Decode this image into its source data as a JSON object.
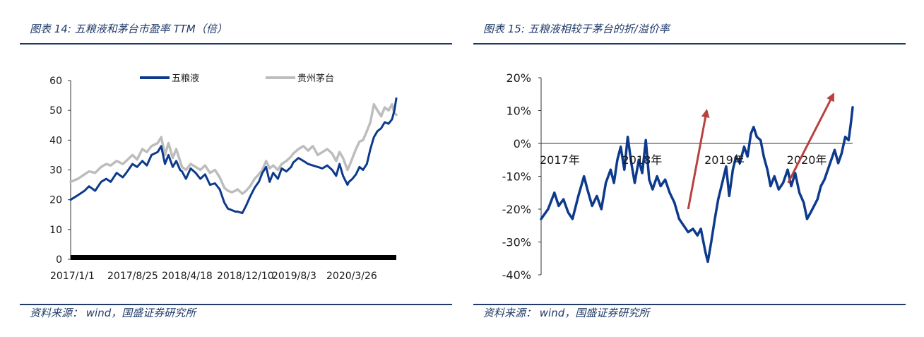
{
  "left": {
    "title": "图表 14:  五粮液和茅台市盈率 TTM（倍）",
    "source": "资料来源：  wind，国盛证券研究所",
    "chart_data": {
      "type": "line",
      "title": "",
      "xlabel": "",
      "ylabel": "",
      "ylim": [
        0,
        60
      ],
      "yticks": [
        0,
        10,
        20,
        30,
        40,
        50,
        60
      ],
      "x_tick_labels": [
        "2017/1/1",
        "2017/8/25",
        "2018/4/18",
        "2018/12/10",
        "2019/8/3",
        "2020/3/26"
      ],
      "x_start": "2017/1/1",
      "x_end": "2020/10/13",
      "legend_position": "top",
      "series": [
        {
          "name": "五粮液",
          "color": "#0d3a8c",
          "points": [
            [
              "2017/1/1",
              20
            ],
            [
              "2017/2/1",
              21.5
            ],
            [
              "2017/3/1",
              23
            ],
            [
              "2017/3/20",
              24.5
            ],
            [
              "2017/4/15",
              23
            ],
            [
              "2017/5/10",
              26
            ],
            [
              "2017/6/1",
              27
            ],
            [
              "2017/6/20",
              26
            ],
            [
              "2017/7/15",
              29
            ],
            [
              "2017/8/10",
              27.5
            ],
            [
              "2017/8/25",
              29
            ],
            [
              "2017/9/20",
              32
            ],
            [
              "2017/10/10",
              31
            ],
            [
              "2017/11/1",
              33
            ],
            [
              "2017/11/20",
              31.5
            ],
            [
              "2017/12/10",
              35
            ],
            [
              "2018/1/5",
              36
            ],
            [
              "2018/1/20",
              38
            ],
            [
              "2018/2/5",
              32
            ],
            [
              "2018/2/20",
              35
            ],
            [
              "2018/3/10",
              31
            ],
            [
              "2018/3/25",
              33
            ],
            [
              "2018/4/10",
              30
            ],
            [
              "2018/4/18",
              29.5
            ],
            [
              "2018/5/5",
              27
            ],
            [
              "2018/5/25",
              30.5
            ],
            [
              "2018/6/15",
              29
            ],
            [
              "2018/7/5",
              27
            ],
            [
              "2018/7/25",
              28.5
            ],
            [
              "2018/8/15",
              25
            ],
            [
              "2018/9/5",
              25.5
            ],
            [
              "2018/9/25",
              23.5
            ],
            [
              "2018/10/15",
              19
            ],
            [
              "2018/10/30",
              17
            ],
            [
              "2018/11/15",
              16.5
            ],
            [
              "2018/12/1",
              16
            ],
            [
              "2018/12/10",
              16
            ],
            [
              "2018/12/30",
              15.5
            ],
            [
              "2019/1/15",
              18
            ],
            [
              "2019/2/1",
              21
            ],
            [
              "2019/2/20",
              24
            ],
            [
              "2019/3/10",
              26
            ],
            [
              "2019/3/25",
              29
            ],
            [
              "2019/4/10",
              31
            ],
            [
              "2019/4/25",
              26
            ],
            [
              "2019/5/10",
              29
            ],
            [
              "2019/5/30",
              27
            ],
            [
              "2019/6/15",
              30.5
            ],
            [
              "2019/7/5",
              29.5
            ],
            [
              "2019/7/25",
              31
            ],
            [
              "2019/8/3",
              32.5
            ],
            [
              "2019/8/25",
              34
            ],
            [
              "2019/9/15",
              33
            ],
            [
              "2019/10/5",
              32
            ],
            [
              "2019/10/25",
              31.5
            ],
            [
              "2019/11/15",
              31
            ],
            [
              "2019/12/5",
              30.5
            ],
            [
              "2019/12/25",
              31.5
            ],
            [
              "2020/1/15",
              30
            ],
            [
              "2020/2/1",
              28
            ],
            [
              "2020/2/15",
              32
            ],
            [
              "2020/3/1",
              28
            ],
            [
              "2020/3/20",
              25
            ],
            [
              "2020/3/26",
              26
            ],
            [
              "2020/4/10",
              27
            ],
            [
              "2020/4/25",
              28.5
            ],
            [
              "2020/5/10",
              31
            ],
            [
              "2020/5/25",
              30
            ],
            [
              "2020/6/10",
              32
            ],
            [
              "2020/6/25",
              37
            ],
            [
              "2020/7/10",
              41
            ],
            [
              "2020/7/25",
              43
            ],
            [
              "2020/8/10",
              44
            ],
            [
              "2020/8/25",
              46
            ],
            [
              "2020/9/10",
              45.5
            ],
            [
              "2020/9/25",
              47
            ],
            [
              "2020/10/5",
              50
            ],
            [
              "2020/10/13",
              54
            ]
          ]
        },
        {
          "name": "贵州茅台",
          "color": "#bdbdbd",
          "points": [
            [
              "2017/1/1",
              26
            ],
            [
              "2017/2/1",
              27
            ],
            [
              "2017/3/1",
              28.5
            ],
            [
              "2017/3/20",
              29.5
            ],
            [
              "2017/4/15",
              29
            ],
            [
              "2017/5/10",
              31
            ],
            [
              "2017/6/1",
              32
            ],
            [
              "2017/6/20",
              31.5
            ],
            [
              "2017/7/15",
              33
            ],
            [
              "2017/8/10",
              32
            ],
            [
              "2017/8/25",
              33
            ],
            [
              "2017/9/20",
              35
            ],
            [
              "2017/10/10",
              33.5
            ],
            [
              "2017/11/1",
              37
            ],
            [
              "2017/11/20",
              36
            ],
            [
              "2017/12/10",
              38
            ],
            [
              "2018/1/5",
              39
            ],
            [
              "2018/1/20",
              41
            ],
            [
              "2018/2/5",
              35
            ],
            [
              "2018/2/20",
              39
            ],
            [
              "2018/3/10",
              34
            ],
            [
              "2018/3/25",
              37
            ],
            [
              "2018/4/10",
              33
            ],
            [
              "2018/4/18",
              31
            ],
            [
              "2018/5/5",
              30
            ],
            [
              "2018/5/25",
              32
            ],
            [
              "2018/6/15",
              31
            ],
            [
              "2018/7/5",
              30
            ],
            [
              "2018/7/25",
              31.5
            ],
            [
              "2018/8/15",
              29
            ],
            [
              "2018/9/5",
              30
            ],
            [
              "2018/9/25",
              27.5
            ],
            [
              "2018/10/15",
              24
            ],
            [
              "2018/10/30",
              23
            ],
            [
              "2018/11/15",
              22.5
            ],
            [
              "2018/12/1",
              23
            ],
            [
              "2018/12/10",
              23.5
            ],
            [
              "2018/12/30",
              22
            ],
            [
              "2019/1/15",
              23
            ],
            [
              "2019/2/1",
              24.5
            ],
            [
              "2019/2/20",
              27
            ],
            [
              "2019/3/10",
              28.5
            ],
            [
              "2019/3/25",
              30
            ],
            [
              "2019/4/10",
              33
            ],
            [
              "2019/4/25",
              30.5
            ],
            [
              "2019/5/10",
              31.5
            ],
            [
              "2019/5/30",
              30
            ],
            [
              "2019/6/15",
              32
            ],
            [
              "2019/7/5",
              33
            ],
            [
              "2019/7/25",
              34.5
            ],
            [
              "2019/8/3",
              35.5
            ],
            [
              "2019/8/25",
              37
            ],
            [
              "2019/9/15",
              38
            ],
            [
              "2019/10/5",
              36.5
            ],
            [
              "2019/10/25",
              38
            ],
            [
              "2019/11/15",
              35
            ],
            [
              "2019/12/5",
              36
            ],
            [
              "2019/12/25",
              37
            ],
            [
              "2020/1/15",
              35.5
            ],
            [
              "2020/2/1",
              33
            ],
            [
              "2020/2/15",
              36
            ],
            [
              "2020/3/1",
              34
            ],
            [
              "2020/3/20",
              30
            ],
            [
              "2020/3/26",
              31
            ],
            [
              "2020/4/10",
              34
            ],
            [
              "2020/4/25",
              37
            ],
            [
              "2020/5/10",
              39.5
            ],
            [
              "2020/5/25",
              40
            ],
            [
              "2020/6/10",
              43
            ],
            [
              "2020/6/25",
              46
            ],
            [
              "2020/7/10",
              52
            ],
            [
              "2020/7/25",
              50
            ],
            [
              "2020/8/10",
              48
            ],
            [
              "2020/8/25",
              51
            ],
            [
              "2020/9/10",
              50
            ],
            [
              "2020/9/25",
              52
            ],
            [
              "2020/10/5",
              49
            ],
            [
              "2020/10/13",
              48.5
            ]
          ]
        }
      ]
    }
  },
  "right": {
    "title": "图表 15:  五粮液相较于茅台的折/溢价率",
    "source": "资料来源：  wind，国盛证券研究所",
    "chart_data": {
      "type": "line",
      "title": "",
      "xlabel": "",
      "ylabel": "",
      "ylim": [
        -0.4,
        0.2
      ],
      "ytick_labels": [
        "20%",
        "10%",
        "0%",
        "-10%",
        "-20%",
        "-30%",
        "-40%"
      ],
      "yticks": [
        0.2,
        0.1,
        0,
        -0.1,
        -0.2,
        -0.3,
        -0.4
      ],
      "x_tick_labels": [
        "2017年",
        "2018年",
        "2019年",
        "2020年"
      ],
      "x_ticks": [
        "2017/1/1",
        "2018/1/1",
        "2019/1/1",
        "2020/1/1"
      ],
      "x_start": "2017/1/1",
      "x_end": "2020/10/13",
      "legend_position": "none",
      "grid": false,
      "series": [
        {
          "color": "#0d3a8c",
          "points": [
            [
              "2017/1/1",
              -0.23
            ],
            [
              "2017/2/1",
              -0.2
            ],
            [
              "2017/3/1",
              -0.15
            ],
            [
              "2017/3/20",
              -0.19
            ],
            [
              "2017/4/10",
              -0.17
            ],
            [
              "2017/5/1",
              -0.21
            ],
            [
              "2017/5/20",
              -0.23
            ],
            [
              "2017/6/15",
              -0.16
            ],
            [
              "2017/7/10",
              -0.1
            ],
            [
              "2017/7/25",
              -0.14
            ],
            [
              "2017/8/15",
              -0.19
            ],
            [
              "2017/9/5",
              -0.16
            ],
            [
              "2017/9/25",
              -0.2
            ],
            [
              "2017/10/15",
              -0.12
            ],
            [
              "2017/11/5",
              -0.08
            ],
            [
              "2017/11/20",
              -0.12
            ],
            [
              "2017/12/5",
              -0.05
            ],
            [
              "2017/12/20",
              -0.01
            ],
            [
              "2018/1/5",
              -0.08
            ],
            [
              "2018/1/20",
              0.02
            ],
            [
              "2018/2/5",
              -0.06
            ],
            [
              "2018/2/20",
              -0.12
            ],
            [
              "2018/3/10",
              -0.05
            ],
            [
              "2018/3/25",
              -0.09
            ],
            [
              "2018/4/10",
              0.01
            ],
            [
              "2018/4/25",
              -0.11
            ],
            [
              "2018/5/10",
              -0.14
            ],
            [
              "2018/5/30",
              -0.1
            ],
            [
              "2018/6/15",
              -0.13
            ],
            [
              "2018/7/5",
              -0.11
            ],
            [
              "2018/7/25",
              -0.15
            ],
            [
              "2018/8/15",
              -0.18
            ],
            [
              "2018/9/5",
              -0.23
            ],
            [
              "2018/9/25",
              -0.25
            ],
            [
              "2018/10/15",
              -0.27
            ],
            [
              "2018/11/5",
              -0.26
            ],
            [
              "2018/11/25",
              -0.28
            ],
            [
              "2018/12/10",
              -0.26
            ],
            [
              "2018/12/30",
              -0.33
            ],
            [
              "2019/1/10",
              -0.36
            ],
            [
              "2019/1/25",
              -0.3
            ],
            [
              "2019/2/10",
              -0.23
            ],
            [
              "2019/2/25",
              -0.17
            ],
            [
              "2019/3/15",
              -0.12
            ],
            [
              "2019/4/1",
              -0.07
            ],
            [
              "2019/4/15",
              -0.16
            ],
            [
              "2019/5/1",
              -0.08
            ],
            [
              "2019/5/15",
              -0.04
            ],
            [
              "2019/6/1",
              -0.06
            ],
            [
              "2019/6/20",
              -0.01
            ],
            [
              "2019/7/5",
              -0.04
            ],
            [
              "2019/7/20",
              0.03
            ],
            [
              "2019/8/1",
              0.05
            ],
            [
              "2019/8/15",
              0.02
            ],
            [
              "2019/9/1",
              0.01
            ],
            [
              "2019/9/15",
              -0.04
            ],
            [
              "2019/10/1",
              -0.08
            ],
            [
              "2019/10/15",
              -0.13
            ],
            [
              "2019/11/1",
              -0.1
            ],
            [
              "2019/11/20",
              -0.14
            ],
            [
              "2019/12/10",
              -0.12
            ],
            [
              "2019/12/30",
              -0.08
            ],
            [
              "2020/1/15",
              -0.13
            ],
            [
              "2020/2/1",
              -0.09
            ],
            [
              "2020/2/20",
              -0.15
            ],
            [
              "2020/3/10",
              -0.18
            ],
            [
              "2020/3/25",
              -0.23
            ],
            [
              "2020/4/10",
              -0.21
            ],
            [
              "2020/4/25",
              -0.19
            ],
            [
              "2020/5/10",
              -0.17
            ],
            [
              "2020/5/25",
              -0.13
            ],
            [
              "2020/6/10",
              -0.11
            ],
            [
              "2020/6/25",
              -0.08
            ],
            [
              "2020/7/10",
              -0.05
            ],
            [
              "2020/7/25",
              -0.02
            ],
            [
              "2020/8/10",
              -0.06
            ],
            [
              "2020/8/25",
              -0.03
            ],
            [
              "2020/9/10",
              0.02
            ],
            [
              "2020/9/25",
              0.01
            ],
            [
              "2020/10/5",
              0.06
            ],
            [
              "2020/10/13",
              0.11
            ]
          ]
        }
      ],
      "annotations": [
        {
          "type": "arrow",
          "from": [
            "2018/10/15",
            -0.2
          ],
          "to": [
            "2019/1/5",
            0.1
          ],
          "color": "#b9413f"
        },
        {
          "type": "arrow",
          "from": [
            "2020/1/1",
            -0.12
          ],
          "to": [
            "2020/7/20",
            0.15
          ],
          "color": "#b9413f"
        }
      ]
    }
  }
}
